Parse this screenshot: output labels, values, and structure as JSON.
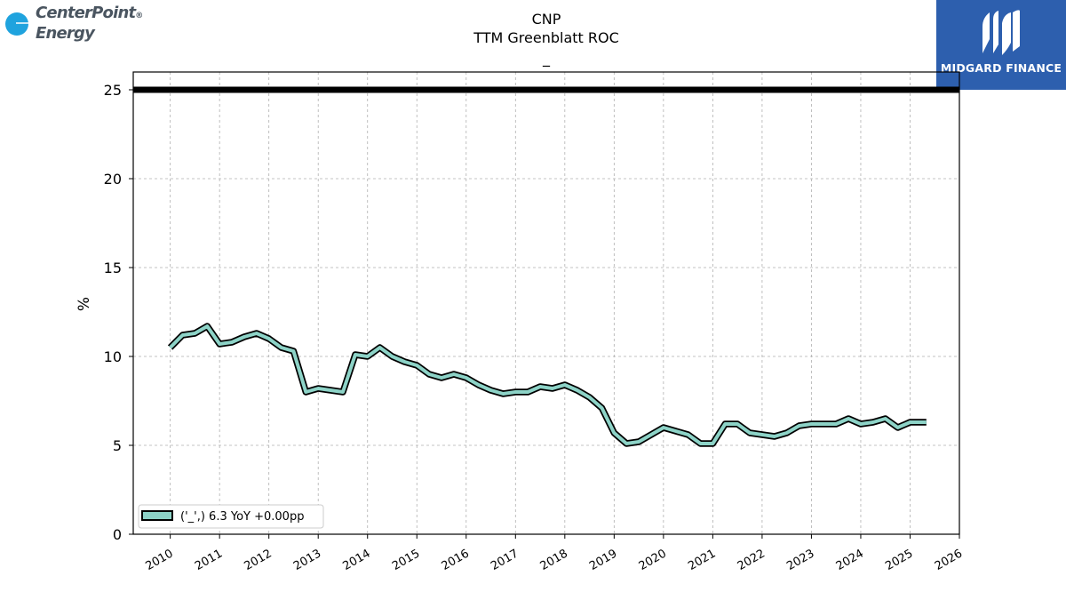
{
  "header": {
    "left_logo": {
      "line1": "CenterPoint",
      "line2": "Energy",
      "mark": "®"
    },
    "right_logo": {
      "text": "MIDGARD FINANCE"
    }
  },
  "chart_data": {
    "type": "line",
    "title": "CNP",
    "subtitle": "TTM Greenblatt ROC",
    "subtitle2": "_",
    "xlabel": "",
    "ylabel": "%",
    "ylim": [
      0,
      26
    ],
    "xlim": [
      2009.25,
      2026.0
    ],
    "yticks": [
      0,
      5,
      10,
      15,
      20,
      25
    ],
    "xticks": [
      2010,
      2011,
      2012,
      2013,
      2014,
      2015,
      2016,
      2017,
      2018,
      2019,
      2020,
      2021,
      2022,
      2023,
      2024,
      2025,
      2026
    ],
    "grid": true,
    "legend_position": "lower-left",
    "reference_line": {
      "y": 25,
      "color": "#000000"
    },
    "series": [
      {
        "name": "('_',) 6.3 YoY +0.00pp",
        "color": "#8dd3c7",
        "x": [
          2010.0,
          2010.25,
          2010.5,
          2010.75,
          2011.0,
          2011.25,
          2011.5,
          2011.75,
          2012.0,
          2012.25,
          2012.5,
          2012.75,
          2013.0,
          2013.25,
          2013.5,
          2013.75,
          2014.0,
          2014.25,
          2014.5,
          2014.75,
          2015.0,
          2015.25,
          2015.5,
          2015.75,
          2016.0,
          2016.25,
          2016.5,
          2016.75,
          2017.0,
          2017.25,
          2017.5,
          2017.75,
          2018.0,
          2018.25,
          2018.5,
          2018.75,
          2019.0,
          2019.25,
          2019.5,
          2019.75,
          2020.0,
          2020.25,
          2020.5,
          2020.75,
          2021.0,
          2021.25,
          2021.5,
          2021.75,
          2022.0,
          2022.25,
          2022.5,
          2022.75,
          2023.0,
          2023.25,
          2023.5,
          2023.75,
          2024.0,
          2024.25,
          2024.5,
          2024.75,
          2025.0,
          2025.33
        ],
        "y": [
          10.5,
          11.2,
          11.3,
          11.7,
          10.7,
          10.8,
          11.1,
          11.3,
          11.0,
          10.5,
          10.3,
          8.0,
          8.2,
          8.1,
          8.0,
          10.1,
          10.0,
          10.5,
          10.0,
          9.7,
          9.5,
          9.0,
          8.8,
          9.0,
          8.8,
          8.4,
          8.1,
          7.9,
          8.0,
          8.0,
          8.3,
          8.2,
          8.4,
          8.1,
          7.7,
          7.1,
          5.7,
          5.1,
          5.2,
          5.6,
          6.0,
          5.8,
          5.6,
          5.1,
          5.1,
          6.2,
          6.2,
          5.7,
          5.6,
          5.5,
          5.7,
          6.1,
          6.2,
          6.2,
          6.2,
          6.5,
          6.2,
          6.3,
          6.5,
          6.0,
          6.3,
          6.3
        ]
      }
    ]
  }
}
